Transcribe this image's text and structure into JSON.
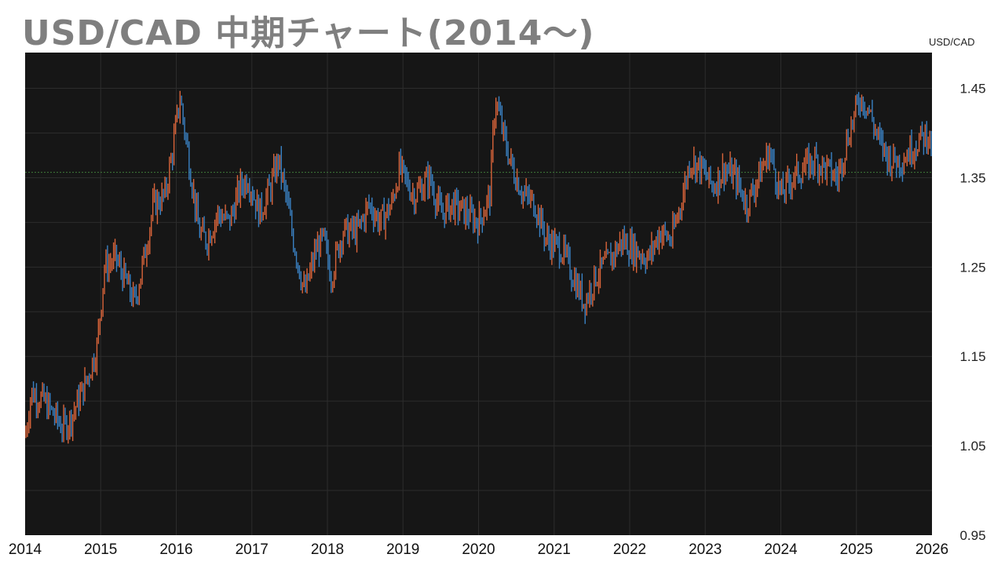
{
  "page": {
    "title": "USD/CAD  中期チャート(2014～)"
  },
  "chart_data": {
    "type": "ohlc",
    "title": "USD/CAD  中期チャート(2014～)",
    "ylabel": "USD/CAD",
    "xlim": [
      2014,
      2026
    ],
    "ylim": [
      0.95,
      1.49
    ],
    "y_ticks": [
      "1.45",
      "1.35",
      "1.25",
      "1.15",
      "1.05",
      "0.95"
    ],
    "x_ticks": [
      "2014",
      "2015",
      "2016",
      "2017",
      "2018",
      "2019",
      "2020",
      "2021",
      "2022",
      "2023",
      "2024",
      "2025",
      "2026"
    ],
    "grid": true,
    "reference_line": 1.356,
    "colors": {
      "background": "#161616",
      "up": "#d9643a",
      "down": "#3a82c4",
      "grid": "#2c2c2c",
      "reference_line": "#3f7a3a"
    },
    "anchors": [
      [
        2014.0,
        1.06
      ],
      [
        2014.08,
        1.11
      ],
      [
        2014.25,
        1.1
      ],
      [
        2014.5,
        1.07
      ],
      [
        2014.6,
        1.08
      ],
      [
        2014.8,
        1.12
      ],
      [
        2014.95,
        1.16
      ],
      [
        2015.05,
        1.25
      ],
      [
        2015.2,
        1.26
      ],
      [
        2015.3,
        1.24
      ],
      [
        2015.45,
        1.21
      ],
      [
        2015.55,
        1.25
      ],
      [
        2015.7,
        1.32
      ],
      [
        2015.85,
        1.33
      ],
      [
        2015.95,
        1.38
      ],
      [
        2016.05,
        1.44
      ],
      [
        2016.15,
        1.38
      ],
      [
        2016.3,
        1.29
      ],
      [
        2016.4,
        1.28
      ],
      [
        2016.55,
        1.31
      ],
      [
        2016.7,
        1.3
      ],
      [
        2016.85,
        1.34
      ],
      [
        2016.95,
        1.35
      ],
      [
        2017.1,
        1.31
      ],
      [
        2017.25,
        1.34
      ],
      [
        2017.35,
        1.37
      ],
      [
        2017.45,
        1.33
      ],
      [
        2017.55,
        1.28
      ],
      [
        2017.7,
        1.22
      ],
      [
        2017.85,
        1.27
      ],
      [
        2017.95,
        1.28
      ],
      [
        2018.05,
        1.24
      ],
      [
        2018.2,
        1.29
      ],
      [
        2018.4,
        1.29
      ],
      [
        2018.55,
        1.32
      ],
      [
        2018.7,
        1.3
      ],
      [
        2018.85,
        1.32
      ],
      [
        2018.95,
        1.36
      ],
      [
        2019.15,
        1.33
      ],
      [
        2019.35,
        1.35
      ],
      [
        2019.5,
        1.31
      ],
      [
        2019.65,
        1.32
      ],
      [
        2019.85,
        1.31
      ],
      [
        2020.0,
        1.3
      ],
      [
        2020.15,
        1.33
      ],
      [
        2020.22,
        1.44
      ],
      [
        2020.35,
        1.39
      ],
      [
        2020.45,
        1.36
      ],
      [
        2020.6,
        1.33
      ],
      [
        2020.75,
        1.32
      ],
      [
        2020.9,
        1.28
      ],
      [
        2021.1,
        1.27
      ],
      [
        2021.3,
        1.23
      ],
      [
        2021.4,
        1.21
      ],
      [
        2021.55,
        1.24
      ],
      [
        2021.75,
        1.26
      ],
      [
        2021.9,
        1.28
      ],
      [
        2022.05,
        1.27
      ],
      [
        2022.25,
        1.26
      ],
      [
        2022.4,
        1.29
      ],
      [
        2022.55,
        1.28
      ],
      [
        2022.7,
        1.33
      ],
      [
        2022.8,
        1.37
      ],
      [
        2022.95,
        1.36
      ],
      [
        2023.1,
        1.34
      ],
      [
        2023.25,
        1.36
      ],
      [
        2023.4,
        1.35
      ],
      [
        2023.55,
        1.32
      ],
      [
        2023.75,
        1.36
      ],
      [
        2023.85,
        1.38
      ],
      [
        2024.0,
        1.33
      ],
      [
        2024.15,
        1.35
      ],
      [
        2024.3,
        1.36
      ],
      [
        2024.45,
        1.37
      ],
      [
        2024.6,
        1.36
      ],
      [
        2024.75,
        1.35
      ],
      [
        2024.9,
        1.4
      ],
      [
        2025.05,
        1.44
      ],
      [
        2025.15,
        1.43
      ],
      [
        2025.3,
        1.39
      ],
      [
        2025.45,
        1.37
      ],
      [
        2025.6,
        1.37
      ],
      [
        2025.8,
        1.39
      ],
      [
        2025.95,
        1.4
      ],
      [
        2026.0,
        1.38
      ]
    ]
  }
}
